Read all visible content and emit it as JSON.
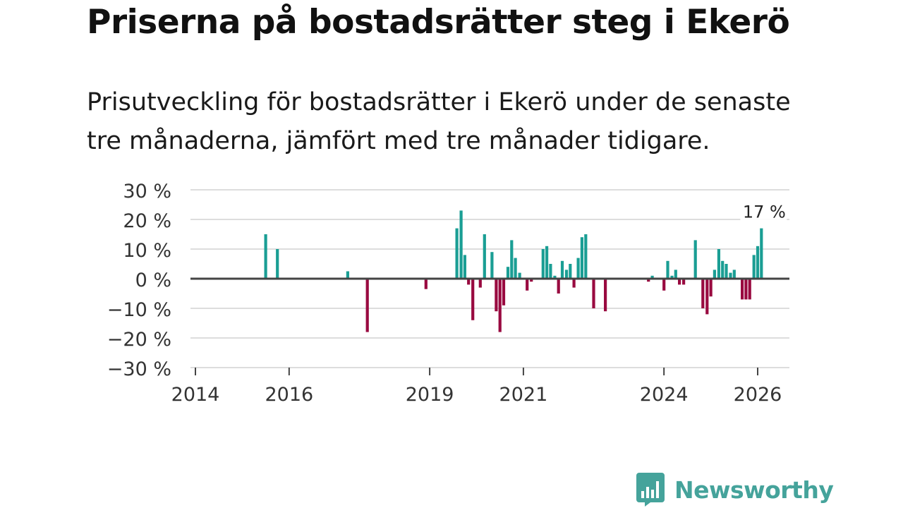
{
  "header": {
    "title": "Priserna på bostadsrätter steg i Ekerö",
    "subtitle": "Prisutveckling för bostadsrätter i Ekerö under de senaste tre månaderna, jämfört med tre månader tidigare."
  },
  "brand": {
    "name": "Newsworthy",
    "color": "#45a39b"
  },
  "colors": {
    "positive": "#1a9e94",
    "negative": "#990a40",
    "grid": "#dddddd",
    "zero_line": "#444444",
    "text": "#333333"
  },
  "chart_data": {
    "type": "bar",
    "xlim": [
      2014,
      2026.7
    ],
    "ylim": [
      -30,
      30
    ],
    "y_ticks": [
      30,
      20,
      10,
      0,
      -10,
      -20,
      -30
    ],
    "y_tick_labels": [
      "30 %",
      "20 %",
      "10 %",
      "0 %",
      "−10 %",
      "−20 %",
      "−30 %"
    ],
    "x_ticks": [
      2014,
      2016,
      2019,
      2021,
      2024,
      2026
    ],
    "x_tick_labels": [
      "2014",
      "2016",
      "2019",
      "2021",
      "2024",
      "2026"
    ],
    "last_value_label": "17 %",
    "series": [
      {
        "name": "Prisutveckling",
        "points": [
          {
            "x": 2015.5,
            "y": 15
          },
          {
            "x": 2015.75,
            "y": 10
          },
          {
            "x": 2017.25,
            "y": 2.5
          },
          {
            "x": 2017.67,
            "y": -18
          },
          {
            "x": 2018.92,
            "y": -3.5
          },
          {
            "x": 2019.58,
            "y": 17
          },
          {
            "x": 2019.67,
            "y": 23
          },
          {
            "x": 2019.75,
            "y": 8
          },
          {
            "x": 2019.83,
            "y": -2
          },
          {
            "x": 2019.92,
            "y": -14
          },
          {
            "x": 2020.08,
            "y": -3
          },
          {
            "x": 2020.17,
            "y": 15
          },
          {
            "x": 2020.33,
            "y": 9
          },
          {
            "x": 2020.42,
            "y": -11
          },
          {
            "x": 2020.5,
            "y": -18
          },
          {
            "x": 2020.58,
            "y": -9
          },
          {
            "x": 2020.67,
            "y": 4
          },
          {
            "x": 2020.75,
            "y": 13
          },
          {
            "x": 2020.83,
            "y": 7
          },
          {
            "x": 2020.92,
            "y": 2
          },
          {
            "x": 2021.08,
            "y": -4
          },
          {
            "x": 2021.17,
            "y": -1
          },
          {
            "x": 2021.42,
            "y": 10
          },
          {
            "x": 2021.5,
            "y": 11
          },
          {
            "x": 2021.58,
            "y": 5
          },
          {
            "x": 2021.67,
            "y": 1
          },
          {
            "x": 2021.75,
            "y": -5
          },
          {
            "x": 2021.83,
            "y": 6
          },
          {
            "x": 2021.92,
            "y": 3
          },
          {
            "x": 2022.0,
            "y": 5
          },
          {
            "x": 2022.08,
            "y": -3
          },
          {
            "x": 2022.17,
            "y": 7
          },
          {
            "x": 2022.25,
            "y": 14
          },
          {
            "x": 2022.33,
            "y": 15
          },
          {
            "x": 2022.5,
            "y": -10
          },
          {
            "x": 2022.75,
            "y": -11
          },
          {
            "x": 2023.67,
            "y": -1
          },
          {
            "x": 2023.75,
            "y": 1
          },
          {
            "x": 2024.0,
            "y": -4
          },
          {
            "x": 2024.08,
            "y": 6
          },
          {
            "x": 2024.17,
            "y": 1
          },
          {
            "x": 2024.25,
            "y": 3
          },
          {
            "x": 2024.33,
            "y": -2
          },
          {
            "x": 2024.42,
            "y": -2
          },
          {
            "x": 2024.67,
            "y": 13
          },
          {
            "x": 2024.83,
            "y": -10
          },
          {
            "x": 2024.92,
            "y": -12
          },
          {
            "x": 2025.0,
            "y": -6
          },
          {
            "x": 2025.08,
            "y": 3
          },
          {
            "x": 2025.17,
            "y": 10
          },
          {
            "x": 2025.25,
            "y": 6
          },
          {
            "x": 2025.33,
            "y": 5
          },
          {
            "x": 2025.42,
            "y": 2
          },
          {
            "x": 2025.5,
            "y": 3
          },
          {
            "x": 2025.67,
            "y": -7
          },
          {
            "x": 2025.75,
            "y": -7
          },
          {
            "x": 2025.83,
            "y": -7
          },
          {
            "x": 2025.92,
            "y": 8
          },
          {
            "x": 2026.0,
            "y": 11
          },
          {
            "x": 2026.08,
            "y": 17
          }
        ]
      }
    ]
  }
}
